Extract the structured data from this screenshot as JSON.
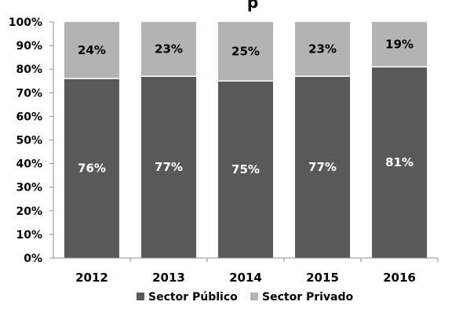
{
  "chart_data": {
    "type": "bar",
    "stacked": true,
    "title": "p",
    "categories": [
      "2012",
      "2013",
      "2014",
      "2015",
      "2016"
    ],
    "series": [
      {
        "name": "Sector Público",
        "color": "#595959",
        "values": [
          76,
          77,
          75,
          77,
          81
        ],
        "labels": [
          "76%",
          "77%",
          "75%",
          "77%",
          "81%"
        ]
      },
      {
        "name": "Sector Privado",
        "color": "#b3b3b3",
        "values": [
          24,
          23,
          25,
          23,
          19
        ],
        "labels": [
          "24%",
          "23%",
          "25%",
          "23%",
          "19%"
        ]
      }
    ],
    "yticks": [
      "0%",
      "10%",
      "20%",
      "30%",
      "40%",
      "50%",
      "60%",
      "70%",
      "80%",
      "90%",
      "100%"
    ],
    "ylim": [
      0,
      100
    ],
    "grid": false,
    "legend_position": "bottom"
  }
}
